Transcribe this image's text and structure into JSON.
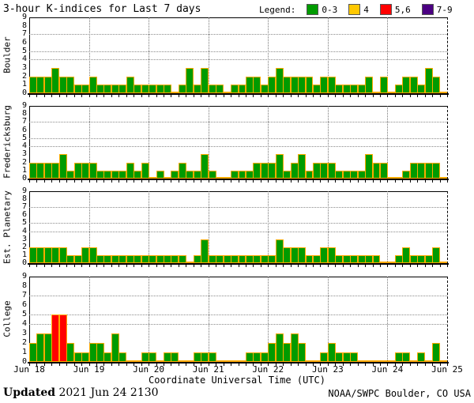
{
  "header": {
    "title": "3-hour K-indices for Last 7 days",
    "legend_label": "Legend:",
    "legend": [
      {
        "label": "0-3",
        "color": "#009B00"
      },
      {
        "label": "4",
        "color": "#FFC800"
      },
      {
        "label": "5,6",
        "color": "#FF0000"
      },
      {
        "label": "7-9",
        "color": "#4B0082"
      }
    ]
  },
  "footer": {
    "updated_label": "Updated",
    "updated_value": "2021 Jun 24 2130",
    "credit": "NOAA/SWPC Boulder, CO USA"
  },
  "chart_data": {
    "type": "bar",
    "title": "3-hour K-indices for Last 7 days",
    "xlabel": "Coordinate Universal Time (UTC)",
    "x_tick_labels": [
      "Jun 18",
      "Jun 19",
      "Jun 20",
      "Jun 21",
      "Jun 22",
      "Jun 23",
      "Jun 24",
      "Jun 25"
    ],
    "y_ticks": [
      0,
      1,
      2,
      3,
      4,
      5,
      6,
      7,
      8,
      9
    ],
    "ylim": [
      0,
      9
    ],
    "bars_per_day": 8,
    "hours_per_bar": 3,
    "grid_klines": [
      4,
      5,
      7
    ],
    "grid": "dotted",
    "legend_position": "top-right",
    "bar_outline_color": "#FFAA00",
    "color_bins": {
      "0-3": "#009B00",
      "4": "#FFC800",
      "5-6": "#FF0000",
      "7-9": "#4B0082"
    },
    "series": [
      {
        "name": "Boulder",
        "values": [
          2,
          2,
          2,
          3,
          2,
          2,
          1,
          1,
          2,
          1,
          1,
          1,
          1,
          2,
          1,
          1,
          1,
          1,
          1,
          0,
          1,
          3,
          1,
          3,
          1,
          1,
          0,
          1,
          1,
          2,
          2,
          1,
          2,
          3,
          2,
          2,
          2,
          2,
          1,
          2,
          2,
          1,
          1,
          1,
          1,
          2,
          0,
          2,
          0,
          1,
          2,
          2,
          1,
          3,
          2,
          0
        ]
      },
      {
        "name": "Fredericksburg",
        "values": [
          2,
          2,
          2,
          2,
          3,
          1,
          2,
          2,
          2,
          1,
          1,
          1,
          1,
          2,
          1,
          2,
          0,
          1,
          0,
          1,
          2,
          1,
          1,
          3,
          1,
          0,
          0,
          1,
          1,
          1,
          2,
          2,
          2,
          3,
          1,
          2,
          3,
          1,
          2,
          2,
          2,
          1,
          1,
          1,
          1,
          3,
          2,
          2,
          0,
          0,
          1,
          2,
          2,
          2,
          2,
          0
        ]
      },
      {
        "name": "Est. Planetary",
        "values": [
          2,
          2,
          2,
          2,
          2,
          1,
          1,
          2,
          2,
          1,
          1,
          1,
          1,
          1,
          1,
          1,
          1,
          1,
          1,
          1,
          1,
          0,
          1,
          3,
          1,
          1,
          1,
          1,
          1,
          1,
          1,
          1,
          1,
          3,
          2,
          2,
          2,
          1,
          1,
          2,
          2,
          1,
          1,
          1,
          1,
          1,
          1,
          0,
          0,
          1,
          2,
          1,
          1,
          1,
          2,
          0
        ]
      },
      {
        "name": "College",
        "values": [
          2,
          3,
          3,
          5,
          5,
          2,
          1,
          1,
          2,
          2,
          1,
          3,
          1,
          0,
          0,
          1,
          1,
          0,
          1,
          1,
          0,
          0,
          1,
          1,
          1,
          0,
          0,
          0,
          0,
          1,
          1,
          1,
          2,
          3,
          2,
          3,
          2,
          0,
          0,
          1,
          2,
          1,
          1,
          1,
          0,
          0,
          0,
          0,
          0,
          1,
          1,
          0,
          1,
          0,
          2,
          0
        ]
      }
    ]
  }
}
